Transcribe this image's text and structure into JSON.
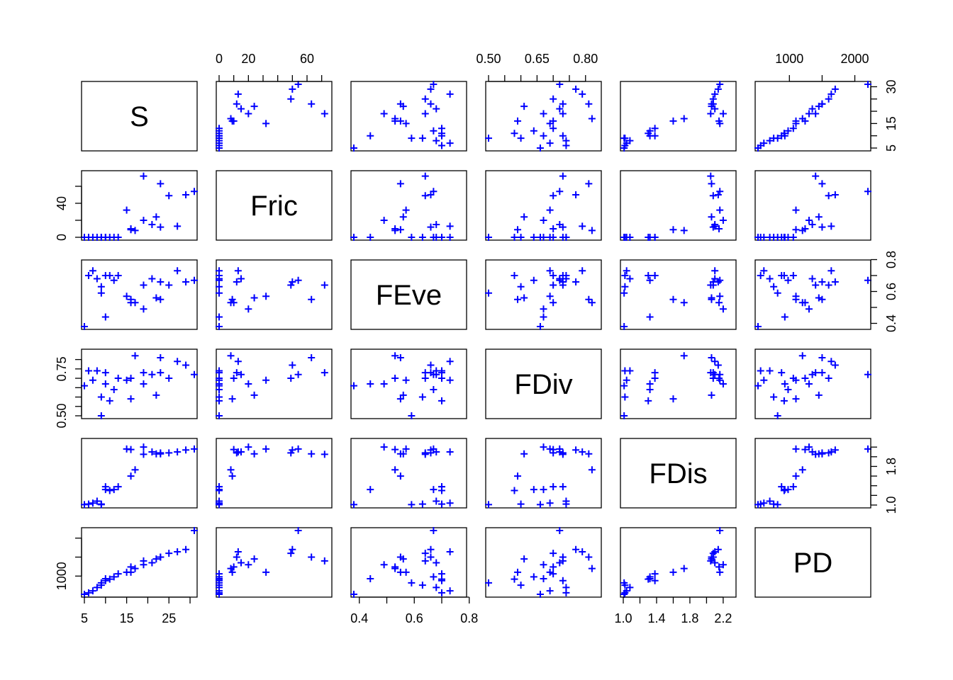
{
  "chart_data": {
    "type": "scatter",
    "subtype": "pairs-matrix",
    "marker": "+",
    "point_color": "#0000ff",
    "variables": [
      {
        "name": "S",
        "lim": [
          5,
          31
        ],
        "ticks": [
          5,
          15,
          25
        ],
        "tick_labels": [
          "5",
          "15",
          "25"
        ],
        "minor_ticks": [
          10,
          20,
          30
        ],
        "right_ticks": [
          5,
          15,
          30
        ],
        "right_tick_labels": [
          "5",
          "15",
          "30"
        ],
        "right_minor_ticks": [
          10,
          20,
          25
        ]
      },
      {
        "name": "Fric",
        "lim": [
          0,
          75
        ],
        "ticks": [
          0,
          20,
          60
        ],
        "tick_labels": [
          "0",
          "20",
          "60"
        ],
        "minor_ticks": [
          10,
          30,
          40,
          50,
          70
        ],
        "left_ticks": [
          0,
          40
        ],
        "left_tick_labels": [
          "0",
          "40"
        ],
        "left_minor_ticks": [
          20,
          60
        ]
      },
      {
        "name": "FEve",
        "lim": [
          0.38,
          0.78
        ],
        "ticks": [
          0.4,
          0.6,
          0.8
        ],
        "tick_labels": [
          "0.4",
          "0.6",
          "0.8"
        ],
        "minor_ticks": [
          0.5,
          0.7
        ],
        "right_ticks": [
          0.4,
          0.6,
          0.8
        ],
        "right_tick_labels": [
          "0.4",
          "0.6",
          "0.8"
        ],
        "right_minor_ticks": [
          0.5,
          0.7
        ]
      },
      {
        "name": "FDiv",
        "lim": [
          0.5,
          0.84
        ],
        "ticks": [
          0.5,
          0.65,
          0.8
        ],
        "tick_labels": [
          "0.50",
          "0.65",
          "0.80"
        ],
        "minor_ticks": [
          0.55,
          0.6,
          0.7,
          0.75
        ],
        "left_ticks": [
          0.5,
          0.75
        ],
        "left_tick_labels": [
          "0.50",
          "0.75"
        ],
        "left_minor_ticks": [
          0.55,
          0.6,
          0.65,
          0.7,
          0.8
        ]
      },
      {
        "name": "FDis",
        "lim": [
          1.0,
          2.32
        ],
        "ticks": [
          1.0,
          1.4,
          1.8,
          2.2
        ],
        "tick_labels": [
          "1.0",
          "1.4",
          "1.8",
          "2.2"
        ],
        "minor_ticks": [
          1.2,
          1.6,
          2.0
        ],
        "right_ticks": [
          1.0,
          1.8
        ],
        "right_tick_labels": [
          "1.0",
          "1.8"
        ],
        "right_minor_ticks": [
          1.2,
          1.4,
          1.6,
          2.0,
          2.2
        ]
      },
      {
        "name": "PD",
        "lim": [
          520,
          2200
        ],
        "ticks": [
          1000,
          2000
        ],
        "tick_labels": [
          "1000",
          "2000"
        ],
        "minor_ticks": [
          1500
        ],
        "left_ticks": [
          1000
        ],
        "left_tick_labels": [
          "1000"
        ],
        "left_minor_ticks": [
          1500,
          2000
        ]
      }
    ],
    "observations": [
      {
        "S": 5,
        "Fric": 0,
        "FEve": 0.38,
        "FDiv": 0.66,
        "FDis": 1.01,
        "PD": 520
      },
      {
        "S": 6,
        "Fric": 0,
        "FEve": 0.7,
        "FDiv": 0.74,
        "FDis": 1.02,
        "PD": 560
      },
      {
        "S": 7,
        "Fric": 0,
        "FEve": 0.73,
        "FDiv": 0.69,
        "FDis": 1.04,
        "PD": 610
      },
      {
        "S": 8,
        "Fric": 0,
        "FEve": 0.68,
        "FDiv": 0.74,
        "FDis": 1.08,
        "PD": 700
      },
      {
        "S": 9,
        "Fric": 0,
        "FEve": 0.63,
        "FDiv": 0.6,
        "FDis": 1.02,
        "PD": 760
      },
      {
        "S": 9,
        "Fric": 0,
        "FEve": 0.59,
        "FDiv": 0.5,
        "FDis": 1.01,
        "PD": 820
      },
      {
        "S": 10,
        "Fric": 0,
        "FEve": 0.7,
        "FDiv": 0.73,
        "FDis": 1.38,
        "PD": 880
      },
      {
        "S": 10,
        "Fric": 0,
        "FEve": 0.44,
        "FDiv": 0.67,
        "FDis": 1.32,
        "PD": 930
      },
      {
        "S": 11,
        "Fric": 0,
        "FEve": 0.7,
        "FDiv": 0.58,
        "FDis": 1.3,
        "PD": 920
      },
      {
        "S": 12,
        "Fric": 0,
        "FEve": 0.67,
        "FDiv": 0.64,
        "FDis": 1.32,
        "PD": 980
      },
      {
        "S": 13,
        "Fric": 0,
        "FEve": 0.7,
        "FDiv": 0.7,
        "FDis": 1.38,
        "PD": 1060
      },
      {
        "S": 15,
        "Fric": 32,
        "FEve": 0.57,
        "FDiv": 0.69,
        "FDis": 2.16,
        "PD": 1100
      },
      {
        "S": 16,
        "Fric": 9,
        "FEve": 0.55,
        "FDiv": 0.59,
        "FDis": 1.6,
        "PD": 1100
      },
      {
        "S": 16,
        "Fric": 10,
        "FEve": 0.53,
        "FDiv": 0.7,
        "FDis": 2.15,
        "PD": 1240
      },
      {
        "S": 17,
        "Fric": 8,
        "FEve": 0.53,
        "FDiv": 0.82,
        "FDis": 1.73,
        "PD": 1200
      },
      {
        "S": 19,
        "Fric": 20,
        "FEve": 0.49,
        "FDiv": 0.67,
        "FDis": 2.2,
        "PD": 1300
      },
      {
        "S": 19,
        "Fric": 72,
        "FEve": 0.64,
        "FDiv": 0.73,
        "FDis": 2.05,
        "PD": 1400
      },
      {
        "S": 21,
        "Fric": 15,
        "FEve": 0.68,
        "FDiv": 0.72,
        "FDis": 2.1,
        "PD": 1350
      },
      {
        "S": 22,
        "Fric": 24,
        "FEve": 0.56,
        "FDiv": 0.61,
        "FDis": 2.06,
        "PD": 1450
      },
      {
        "S": 23,
        "Fric": 63,
        "FEve": 0.55,
        "FDiv": 0.81,
        "FDis": 2.06,
        "PD": 1500
      },
      {
        "S": 23,
        "Fric": 12,
        "FEve": 0.66,
        "FDiv": 0.73,
        "FDis": 2.08,
        "PD": 1500
      },
      {
        "S": 25,
        "Fric": 49,
        "FEve": 0.64,
        "FDiv": 0.7,
        "FDis": 2.08,
        "PD": 1600
      },
      {
        "S": 27,
        "Fric": 13,
        "FEve": 0.73,
        "FDiv": 0.79,
        "FDis": 2.1,
        "PD": 1640
      },
      {
        "S": 29,
        "Fric": 50,
        "FEve": 0.66,
        "FDiv": 0.77,
        "FDis": 2.14,
        "PD": 1700
      },
      {
        "S": 31,
        "Fric": 54,
        "FEve": 0.67,
        "FDiv": 0.72,
        "FDis": 2.16,
        "PD": 2200
      }
    ]
  }
}
